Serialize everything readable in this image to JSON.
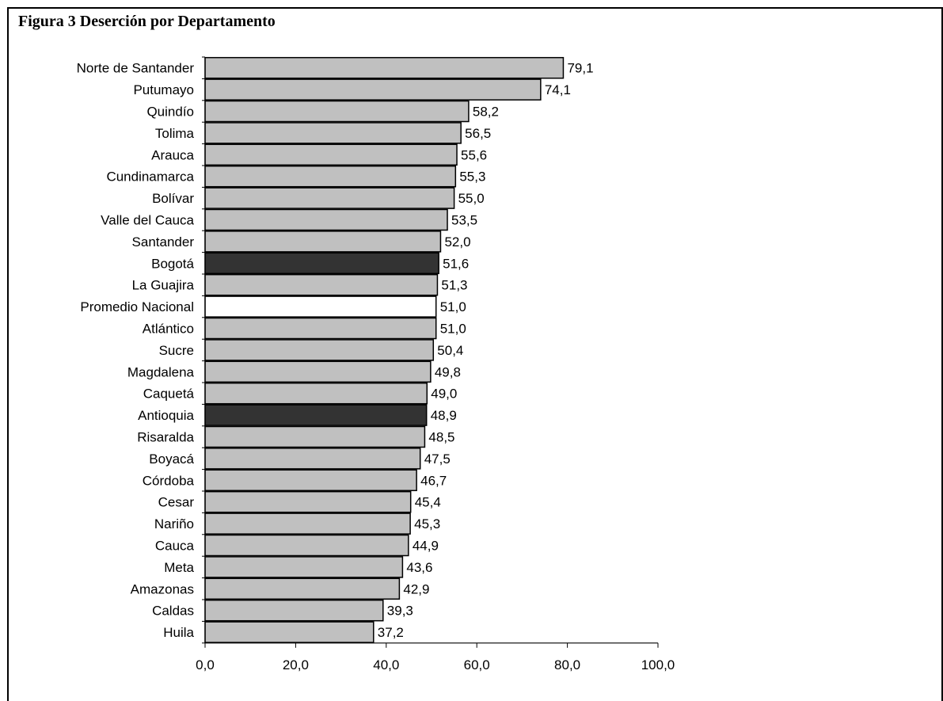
{
  "figure_title": "Figura 3 Deserción por Departamento",
  "chart_data": {
    "type": "bar",
    "orientation": "horizontal",
    "title": "Figura 3 Deserción por Departamento",
    "xlabel": "",
    "ylabel": "",
    "xlim": [
      0,
      100
    ],
    "x_ticks": [
      0,
      20,
      40,
      60,
      80,
      100
    ],
    "x_tick_labels": [
      "0,0",
      "20,0",
      "40,0",
      "60,0",
      "80,0",
      "100,0"
    ],
    "grid": false,
    "legend": "none",
    "colors": {
      "default": "#c0c0c0",
      "highlight": "#333333",
      "national_average": "#ffffff",
      "outline": "#000000"
    },
    "categories": [
      "Norte de Santander",
      "Putumayo",
      "Quindío",
      "Tolima",
      "Arauca",
      "Cundinamarca",
      "Bolívar",
      "Valle del Cauca",
      "Santander",
      "Bogotá",
      "La Guajira",
      "Promedio Nacional",
      "Atlántico",
      "Sucre",
      "Magdalena",
      "Caquetá",
      "Antioquia",
      "Risaralda",
      "Boyacá",
      "Córdoba",
      "Cesar",
      "Nariño",
      "Cauca",
      "Meta",
      "Amazonas",
      "Caldas",
      "Huila"
    ],
    "values": [
      79.1,
      74.1,
      58.2,
      56.5,
      55.6,
      55.3,
      55.0,
      53.5,
      52.0,
      51.6,
      51.3,
      51.0,
      51.0,
      50.4,
      49.8,
      49.0,
      48.9,
      48.5,
      47.5,
      46.7,
      45.4,
      45.3,
      44.9,
      43.6,
      42.9,
      39.3,
      37.2
    ],
    "value_labels": [
      "79,1",
      "74,1",
      "58,2",
      "56,5",
      "55,6",
      "55,3",
      "55,0",
      "53,5",
      "52,0",
      "51,6",
      "51,3",
      "51,0",
      "51,0",
      "50,4",
      "49,8",
      "49,0",
      "48,9",
      "48,5",
      "47,5",
      "46,7",
      "45,4",
      "45,3",
      "44,9",
      "43,6",
      "42,9",
      "39,3",
      "37,2"
    ],
    "bar_styles": [
      "default",
      "default",
      "default",
      "default",
      "default",
      "default",
      "default",
      "default",
      "default",
      "highlight",
      "default",
      "national_average",
      "default",
      "default",
      "default",
      "default",
      "highlight",
      "default",
      "default",
      "default",
      "default",
      "default",
      "default",
      "default",
      "default",
      "default",
      "default"
    ]
  }
}
